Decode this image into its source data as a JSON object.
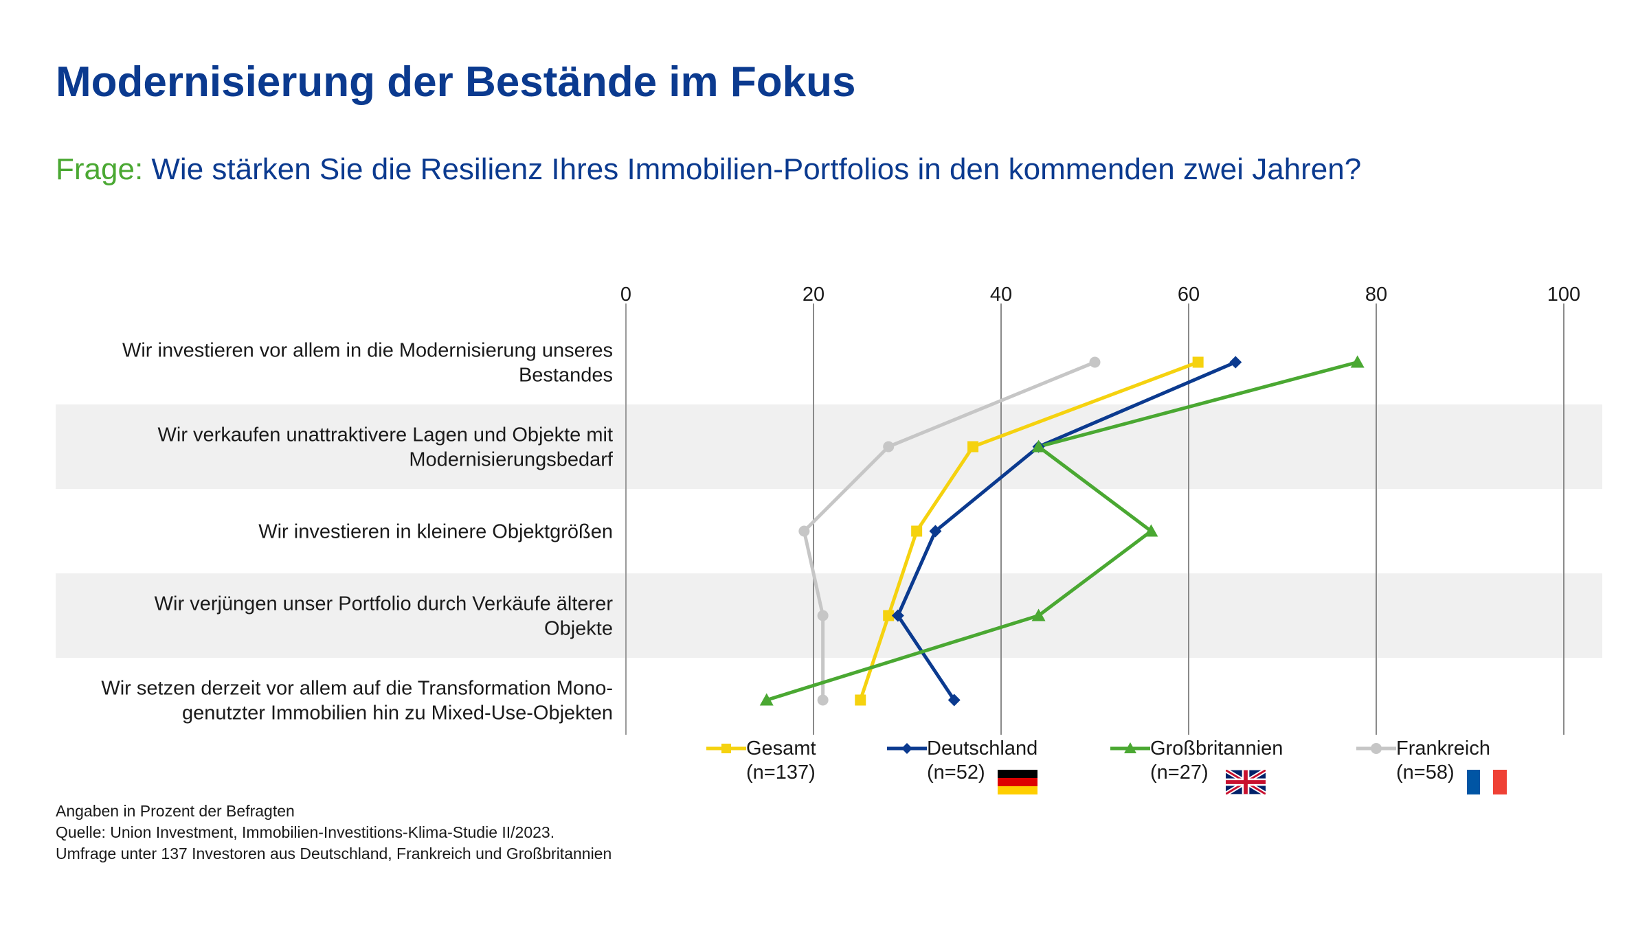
{
  "header": {
    "title": "Modernisierung der Bestände im Fokus",
    "question_prefix": "Frage:",
    "question": "Wie stärken Sie die Resilienz Ihres Immobilien-Portfolios in den kommenden zwei Jahren?"
  },
  "chart_data": {
    "type": "line",
    "orientation": "horizontal",
    "xlim": [
      0,
      100
    ],
    "xticks": [
      "0",
      "20",
      "40",
      "60",
      "80",
      "100"
    ],
    "grid": true,
    "legend_position": "bottom",
    "categories": [
      [
        "Wir investieren vor allem in die Modernisierung unseres",
        "Bestandes"
      ],
      [
        "Wir verkaufen unattraktivere Lagen und Objekte mit",
        "Modernisierungsbedarf"
      ],
      [
        "Wir investieren in kleinere Objektgrößen"
      ],
      [
        "Wir verjüngen unser Portfolio durch Verkäufe älterer",
        "Objekte"
      ],
      [
        "Wir setzen derzeit vor allem auf die Transformation Mono-",
        "genutzter Immobilien hin zu Mixed-Use-Objekten"
      ]
    ],
    "series": [
      {
        "name": "Gesamt",
        "n": "(n=137)",
        "color": "#f5d20f",
        "marker": "square",
        "values": [
          61,
          37,
          31,
          28,
          25
        ]
      },
      {
        "name": "Deutschland",
        "n": "(n=52)",
        "color": "#0b3a8f",
        "marker": "diamond",
        "flag": "germany-flag",
        "values": [
          65,
          44,
          33,
          29,
          35
        ]
      },
      {
        "name": "Großbritannien",
        "n": "(n=27)",
        "color": "#4aa832",
        "marker": "triangle",
        "flag": "uk-flag",
        "values": [
          78,
          44,
          56,
          44,
          15
        ]
      },
      {
        "name": "Frankreich",
        "n": "(n=58)",
        "color": "#c6c6c6",
        "marker": "circle",
        "flag": "france-flag",
        "values": [
          50,
          28,
          19,
          21,
          21
        ]
      }
    ]
  },
  "footnote": [
    "Angaben in Prozent der Befragten",
    "Quelle: Union Investment, Immobilien-Investitions-Klima-Studie II/2023.",
    "Umfrage unter 137 Investoren aus Deutschland, Frankreich und Großbritannien"
  ]
}
